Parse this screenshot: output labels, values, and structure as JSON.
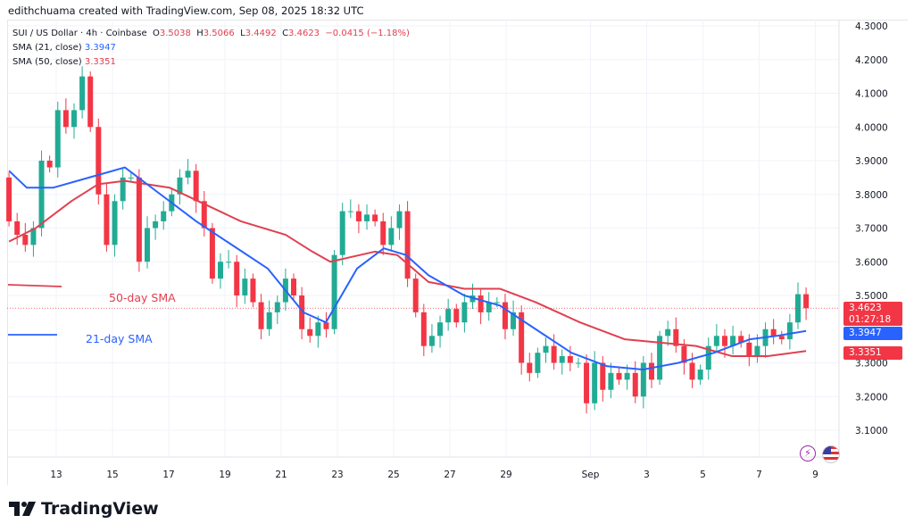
{
  "credit": "edithchuama created with TradingView.com, Sep 08, 2025 18:32 UTC",
  "legend": {
    "symbol": "SUI / US Dollar · 4h · Coinbase",
    "o_label": "O",
    "o": "3.5038",
    "h_label": "H",
    "h": "3.5066",
    "l_label": "L",
    "l": "3.4492",
    "c_label": "C",
    "c": "3.4623",
    "change": "−0.0415 (−1.18%)",
    "sma21_label": "SMA (21, close)",
    "sma21": "3.3947",
    "sma50_label": "SMA (50, close)",
    "sma50": "3.3351"
  },
  "annotations": {
    "sma50": "50-day SMA",
    "sma21": "21-day SMA"
  },
  "price_labels": {
    "last": "3.4623",
    "countdown": "01:27:18",
    "sma21": "3.3947",
    "sma50": "3.3351"
  },
  "colors": {
    "up": "#22ab94",
    "down": "#f23645",
    "sma21": "#2962ff",
    "sma50": "#e04050"
  },
  "logo": "TradingView",
  "icons": [
    "lightning-icon",
    "us-flag-icon"
  ],
  "chart_data": {
    "type": "candlestick",
    "ylim": [
      3.05,
      4.32
    ],
    "y_ticks": [
      "4.3000",
      "4.2000",
      "4.1000",
      "4.0000",
      "3.9000",
      "3.8000",
      "3.7000",
      "3.6000",
      "3.5000",
      "3.3000",
      "3.2000",
      "3.1000"
    ],
    "x_ticks": [
      {
        "day": 13,
        "label": "13"
      },
      {
        "day": 15,
        "label": "15"
      },
      {
        "day": 17,
        "label": "17"
      },
      {
        "day": 19,
        "label": "19"
      },
      {
        "day": 21,
        "label": "21"
      },
      {
        "day": 23,
        "label": "23"
      },
      {
        "day": 25,
        "label": "25"
      },
      {
        "day": 27,
        "label": "27"
      },
      {
        "day": 29,
        "label": "29"
      },
      {
        "day": 32,
        "label": "Sep"
      },
      {
        "day": 34,
        "label": "3"
      },
      {
        "day": 36,
        "label": "5"
      },
      {
        "day": 38,
        "label": "7"
      },
      {
        "day": 40,
        "label": "9"
      }
    ],
    "x_unit": "days since Aug 0",
    "start_day": 11.32,
    "end_day": 39.67,
    "first_open": 3.85,
    "closes": [
      3.72,
      3.68,
      3.65,
      3.7,
      3.9,
      3.88,
      4.05,
      4.0,
      4.05,
      4.15,
      4.0,
      3.8,
      3.65,
      3.78,
      3.85,
      3.85,
      3.6,
      3.7,
      3.72,
      3.75,
      3.8,
      3.85,
      3.87,
      3.78,
      3.7,
      3.55,
      3.6,
      3.6,
      3.5,
      3.55,
      3.48,
      3.4,
      3.45,
      3.48,
      3.55,
      3.5,
      3.4,
      3.38,
      3.42,
      3.4,
      3.62,
      3.75,
      3.75,
      3.72,
      3.74,
      3.72,
      3.65,
      3.7,
      3.75,
      3.55,
      3.45,
      3.35,
      3.38,
      3.42,
      3.46,
      3.42,
      3.48,
      3.5,
      3.45,
      3.48,
      3.48,
      3.4,
      3.45,
      3.3,
      3.27,
      3.33,
      3.35,
      3.3,
      3.32,
      3.3,
      3.3,
      3.18,
      3.3,
      3.22,
      3.27,
      3.25,
      3.27,
      3.2,
      3.3,
      3.25,
      3.38,
      3.4,
      3.35,
      3.3,
      3.25,
      3.28,
      3.35,
      3.38,
      3.35,
      3.38,
      3.36,
      3.32,
      3.35,
      3.4,
      3.38,
      3.37,
      3.42,
      3.5038,
      3.4623
    ],
    "sma21": [
      [
        11.32,
        3.87
      ],
      [
        11.95,
        3.82
      ],
      [
        12.9,
        3.82
      ],
      [
        14.17,
        3.85
      ],
      [
        15.44,
        3.88
      ],
      [
        16.71,
        3.8
      ],
      [
        17.98,
        3.72
      ],
      [
        19.25,
        3.65
      ],
      [
        20.52,
        3.58
      ],
      [
        21.79,
        3.45
      ],
      [
        22.59,
        3.42
      ],
      [
        23.7,
        3.58
      ],
      [
        24.65,
        3.64
      ],
      [
        25.44,
        3.62
      ],
      [
        26.24,
        3.56
      ],
      [
        27.51,
        3.5
      ],
      [
        28.78,
        3.47
      ],
      [
        30.05,
        3.4
      ],
      [
        31.32,
        3.33
      ],
      [
        32.59,
        3.29
      ],
      [
        33.86,
        3.28
      ],
      [
        35.13,
        3.3
      ],
      [
        36.4,
        3.33
      ],
      [
        37.67,
        3.37
      ],
      [
        38.62,
        3.38
      ],
      [
        39.67,
        3.3947
      ]
    ],
    "sma50": [
      [
        11.32,
        3.66
      ],
      [
        12.27,
        3.7
      ],
      [
        13.54,
        3.78
      ],
      [
        14.49,
        3.83
      ],
      [
        15.44,
        3.84
      ],
      [
        17.03,
        3.82
      ],
      [
        18.3,
        3.77
      ],
      [
        19.57,
        3.72
      ],
      [
        21.16,
        3.68
      ],
      [
        22.11,
        3.63
      ],
      [
        22.75,
        3.6
      ],
      [
        24.33,
        3.63
      ],
      [
        25.13,
        3.62
      ],
      [
        26.24,
        3.54
      ],
      [
        27.51,
        3.52
      ],
      [
        28.78,
        3.52
      ],
      [
        30.05,
        3.48
      ],
      [
        31.63,
        3.42
      ],
      [
        33.22,
        3.37
      ],
      [
        34.49,
        3.36
      ],
      [
        35.76,
        3.35
      ],
      [
        37.03,
        3.32
      ],
      [
        38.3,
        3.32
      ],
      [
        39.67,
        3.3351
      ]
    ]
  }
}
